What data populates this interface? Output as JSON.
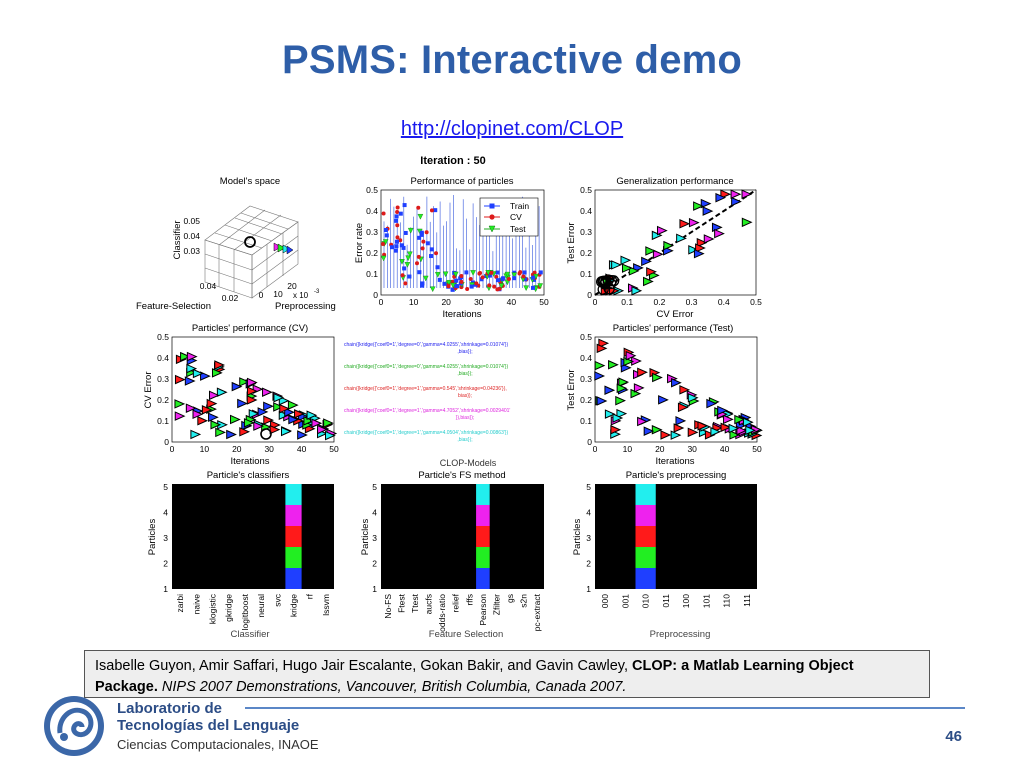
{
  "slide": {
    "title": "PSMS: Interactive demo",
    "link": "http://clopinet.com/CLOP",
    "iteration": "Iteration : 50",
    "citation": {
      "authors": "Isabelle Guyon, Amir Saffari, Hugo Jair Escalante, Gokan Bakir, and Gavin Cawley, ",
      "title": "CLOP: a Matlab Learning Object Package.",
      "venue": " NIPS 2007 Demonstrations, Vancouver, British Columbia, Canada 2007."
    },
    "footer": {
      "lab1": "Laboratorio de",
      "lab2": "Tecnologías del Lenguaje",
      "lab3": "Ciencias Computacionales, INAOE",
      "page": "46"
    }
  },
  "panels": {
    "models_space": {
      "title": "Model's space",
      "zlabel": "Classifier",
      "xlabel": "Feature-Selection",
      "ylabel": "Preprocessing",
      "zticks": [
        "0.05",
        "0.04",
        "0.03"
      ],
      "xticks": [
        "0.04",
        "0.02",
        "0"
      ],
      "yticks": [
        "10",
        "20"
      ],
      "exp": "x 10",
      "exp_power": "-3"
    },
    "perf_particles": {
      "title": "Performance of particles",
      "xlabel": "Iterations",
      "ylabel": "Error rate",
      "yticks": [
        "0.5",
        "0.4",
        "0.3",
        "0.2",
        "0.1",
        "0"
      ],
      "xticks": [
        "0",
        "10",
        "20",
        "30",
        "40",
        "50"
      ],
      "legend": [
        "Train",
        "CV",
        "Test"
      ]
    },
    "gen_perf": {
      "title": "Generalization performance",
      "xlabel": "CV Error",
      "ylabel": "Test Error",
      "yticks": [
        "0.5",
        "0.4",
        "0.3",
        "0.2",
        "0.1",
        "0"
      ],
      "xticks": [
        "0",
        "0.1",
        "0.2",
        "0.3",
        "0.4",
        "0.5"
      ]
    },
    "pp_cv": {
      "title": "Particles' performance (CV)",
      "xlabel": "Iterations",
      "ylabel": "CV Error",
      "yticks": [
        "0.5",
        "0.4",
        "0.3",
        "0.2",
        "0.1",
        "0"
      ],
      "xticks": [
        "0",
        "10",
        "20",
        "30",
        "40",
        "50"
      ]
    },
    "pp_test": {
      "title": "Particles' performance (Test)",
      "xlabel": "Iterations",
      "ylabel": "Test Error",
      "yticks": [
        "0.5",
        "0.4",
        "0.3",
        "0.2",
        "0.1",
        "0"
      ],
      "xticks": [
        "0",
        "10",
        "20",
        "30",
        "40",
        "50"
      ]
    },
    "clop_models": {
      "label": "CLOP-Models",
      "lines": [
        {
          "text": "chain({kridge({'coef0=1','degree=0','gamma=4.0255','shrinkage=0.01074'}),bias});",
          "color": "#2222ee"
        },
        {
          "text": "chain({kridge({'coef0=1','degree=0','gamma=4.0255','shrinkage=0.01074'}),bias});",
          "color": "#22aa22"
        },
        {
          "text": "chain({kridge({'coef0=1','degree=1','gamma=0.545','shrinkage=0.04236'}),bias});",
          "color": "#dd2222"
        },
        {
          "text": "chain({kridge({'coef0=1','degree=1','gamma=4.7052','shrinkage=0.0029401'}),bias});",
          "color": "#dd22dd"
        },
        {
          "text": "chain({kridge({'coef0=1','degree=1','gamma=4.0504','shrinkage=0.00863'}),bias});",
          "color": "#22cccc"
        }
      ]
    },
    "classifiers": {
      "title": "Particle's classifiers",
      "xlabel": "Classifier",
      "ylabel": "Particles",
      "yticks": [
        "5",
        "4",
        "3",
        "2",
        "1"
      ],
      "categories": [
        "zarbi",
        "naive",
        "klogistic",
        "gkridge",
        "logitboost",
        "neural",
        "svc",
        "kridge",
        "rf",
        "lssvm"
      ],
      "selected_index": 7
    },
    "fs_method": {
      "title": "Particle's FS method",
      "xlabel": "Feature Selection",
      "ylabel": "Particles",
      "yticks": [
        "5",
        "4",
        "3",
        "2",
        "1"
      ],
      "categories": [
        "No-FS",
        "Ftest",
        "Ttest",
        "aucfs",
        "odds-ratio",
        "relief",
        "rffs",
        "Pearson",
        "Zfilter",
        "gs",
        "s2n",
        "pc-extract"
      ],
      "selected_index": 7
    },
    "preprocessing": {
      "title": "Particle's preprocessing",
      "xlabel": "Preprocessing",
      "ylabel": "Particles",
      "yticks": [
        "5",
        "4",
        "3",
        "2",
        "1"
      ],
      "categories": [
        "000",
        "001",
        "010",
        "011",
        "100",
        "101",
        "110",
        "111"
      ],
      "selected_index": 2
    },
    "particle_colors": [
      "#1f3fff",
      "#22ee22",
      "#ff1a1a",
      "#ee22ee",
      "#22eeee"
    ]
  }
}
